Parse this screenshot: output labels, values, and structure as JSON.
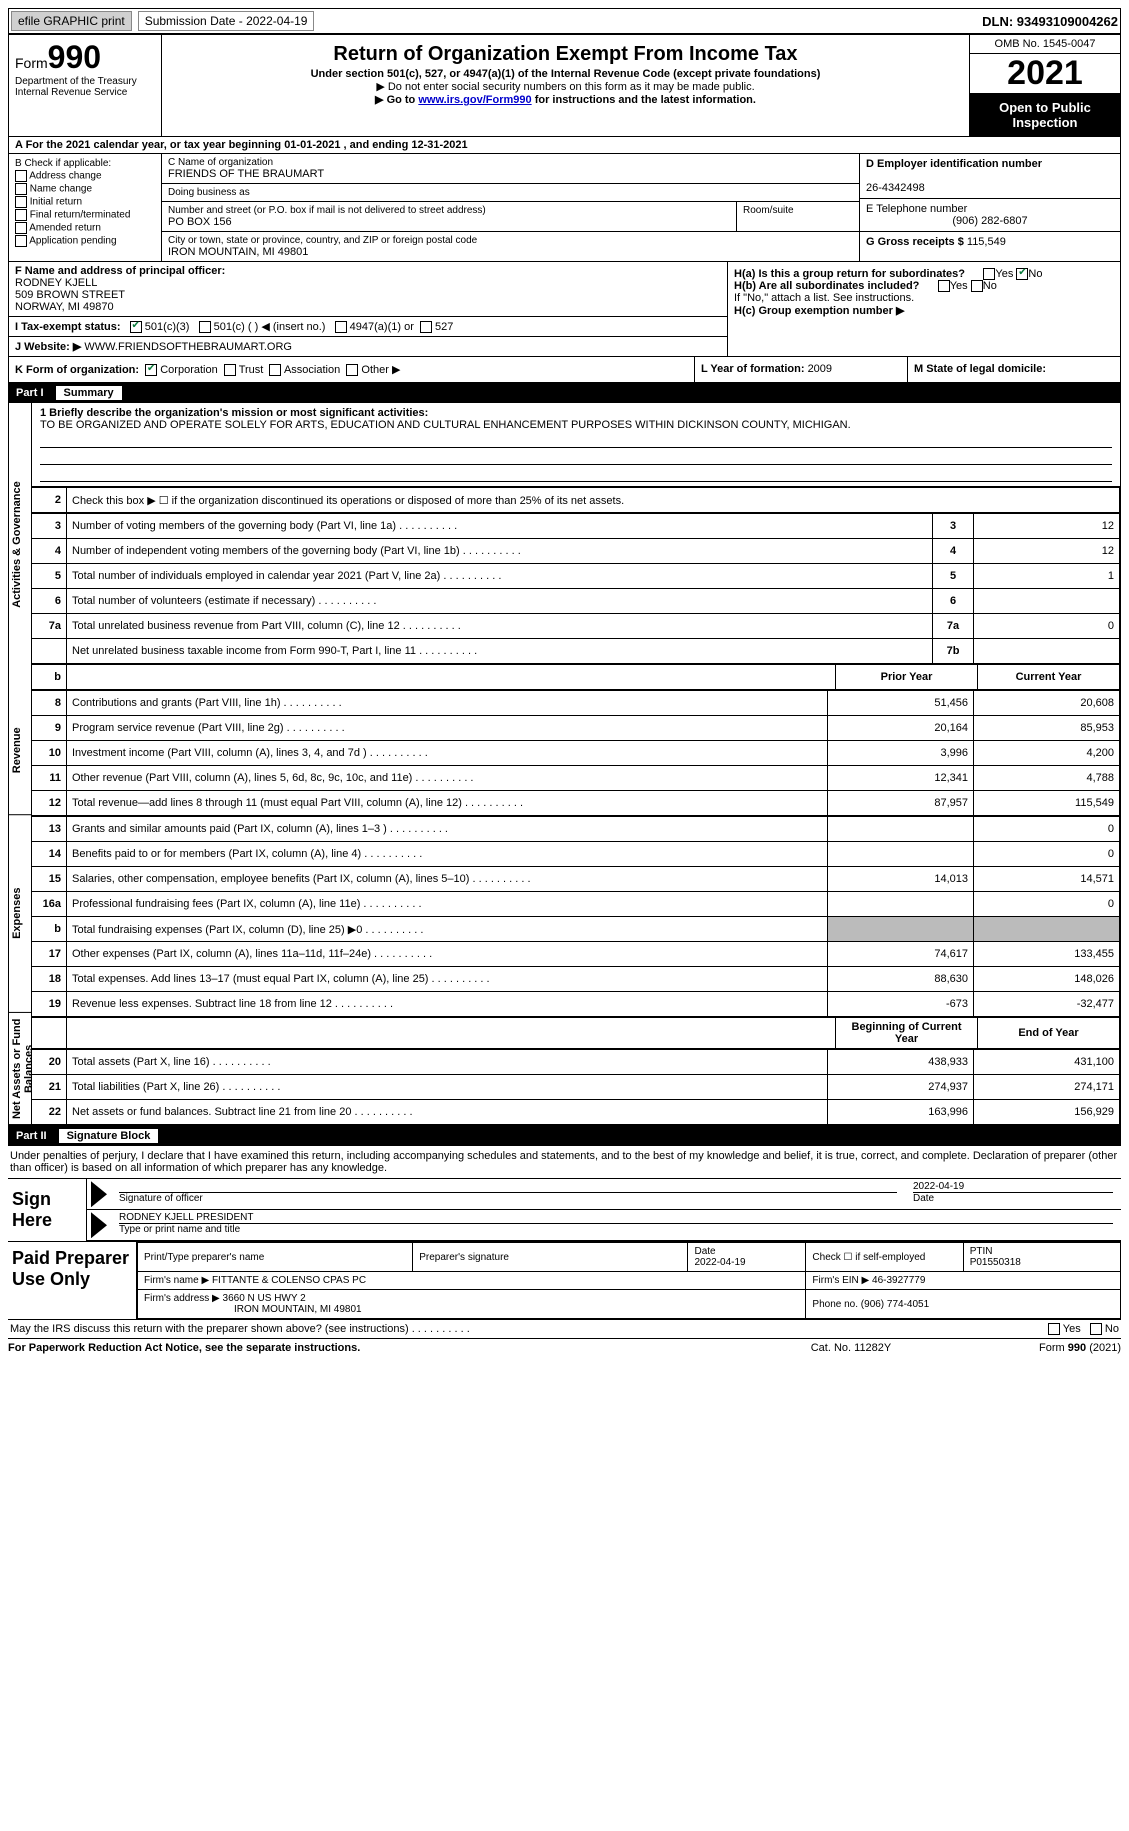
{
  "topbar": {
    "efile_button": "efile GRAPHIC print",
    "submission_label": "Submission Date - 2022-04-19",
    "dln": "DLN: 93493109004262"
  },
  "header": {
    "form_word": "Form",
    "form_number": "990",
    "dept": "Department of the Treasury Internal Revenue Service",
    "title": "Return of Organization Exempt From Income Tax",
    "subtitle": "Under section 501(c), 527, or 4947(a)(1) of the Internal Revenue Code (except private foundations)",
    "line1": "▶ Do not enter social security numbers on this form as it may be made public.",
    "line2_pre": "▶ Go to ",
    "line2_link": "www.irs.gov/Form990",
    "line2_post": " for instructions and the latest information.",
    "omb": "OMB No. 1545-0047",
    "year": "2021",
    "open": "Open to Public Inspection"
  },
  "row_a": "A For the 2021 calendar year, or tax year beginning 01-01-2021    , and ending 12-31-2021",
  "col_b": {
    "label": "B Check if applicable:",
    "addr": "Address change",
    "name": "Name change",
    "initial": "Initial return",
    "final": "Final return/terminated",
    "amended": "Amended return",
    "app": "Application pending"
  },
  "col_c": {
    "name_label": "C Name of organization",
    "name_value": "FRIENDS OF THE BRAUMART",
    "dba_label": "Doing business as",
    "dba_value": "",
    "street_label": "Number and street (or P.O. box if mail is not delivered to street address)",
    "street_value": "PO BOX 156",
    "room_label": "Room/suite",
    "city_label": "City or town, state or province, country, and ZIP or foreign postal code",
    "city_value": "IRON MOUNTAIN, MI  49801"
  },
  "col_d": {
    "ein_label": "D Employer identification number",
    "ein_value": "26-4342498",
    "phone_label": "E Telephone number",
    "phone_value": "(906) 282-6807",
    "gross_label": "G Gross receipts $ ",
    "gross_value": "115,549"
  },
  "fij": {
    "f_label": "F Name and address of principal officer:",
    "f_name": "RODNEY KJELL",
    "f_street": "509 BROWN STREET",
    "f_city": "NORWAY, MI  49870",
    "i_label": "I Tax-exempt status:",
    "i_501c3": "501(c)(3)",
    "i_501c": "501(c) (  ) ◀ (insert no.)",
    "i_4947": "4947(a)(1) or",
    "i_527": "527",
    "j_label": "J Website: ▶",
    "j_value": " WWW.FRIENDSOFTHEBRAUMART.ORG"
  },
  "h": {
    "ha_label": "H(a)  Is this a group return for subordinates?",
    "hb_label": "H(b)  Are all subordinates included?",
    "hb_note": "If \"No,\" attach a list. See instructions.",
    "hc_label": "H(c)  Group exemption number ▶"
  },
  "k": {
    "label": "K Form of organization:",
    "corp": "Corporation",
    "trust": "Trust",
    "assoc": "Association",
    "other": "Other ▶"
  },
  "l": {
    "label": "L Year of formation: ",
    "value": "2009"
  },
  "m": {
    "label": "M State of legal domicile:",
    "value": ""
  },
  "part1": {
    "num": "Part I",
    "title": "Summary"
  },
  "summary": {
    "vtab1": "Activities & Governance",
    "vtab2": "Revenue",
    "vtab3": "Expenses",
    "vtab4": "Net Assets or Fund Balances",
    "q1_label": "1  Briefly describe the organization's mission or most significant activities:",
    "q1_value": "TO BE ORGANIZED AND OPERATE SOLELY FOR ARTS, EDUCATION AND CULTURAL ENHANCEMENT PURPOSES WITHIN DICKINSON COUNTY, MICHIGAN.",
    "q2": "Check this box ▶ ☐ if the organization discontinued its operations or disposed of more than 25% of its net assets.",
    "lines_top": [
      {
        "n": "3",
        "desc": "Number of voting members of the governing body (Part VI, line 1a)",
        "box": "3",
        "val": "12"
      },
      {
        "n": "4",
        "desc": "Number of independent voting members of the governing body (Part VI, line 1b)",
        "box": "4",
        "val": "12"
      },
      {
        "n": "5",
        "desc": "Total number of individuals employed in calendar year 2021 (Part V, line 2a)",
        "box": "5",
        "val": "1"
      },
      {
        "n": "6",
        "desc": "Total number of volunteers (estimate if necessary)",
        "box": "6",
        "val": ""
      },
      {
        "n": "7a",
        "desc": "Total unrelated business revenue from Part VIII, column (C), line 12",
        "box": "7a",
        "val": "0"
      },
      {
        "n": "",
        "desc": "Net unrelated business taxable income from Form 990-T, Part I, line 11",
        "box": "7b",
        "val": ""
      }
    ],
    "col_prior": "Prior Year",
    "col_current": "Current Year",
    "rev": [
      {
        "n": "8",
        "desc": "Contributions and grants (Part VIII, line 1h)",
        "p": "51,456",
        "c": "20,608"
      },
      {
        "n": "9",
        "desc": "Program service revenue (Part VIII, line 2g)",
        "p": "20,164",
        "c": "85,953"
      },
      {
        "n": "10",
        "desc": "Investment income (Part VIII, column (A), lines 3, 4, and 7d )",
        "p": "3,996",
        "c": "4,200"
      },
      {
        "n": "11",
        "desc": "Other revenue (Part VIII, column (A), lines 5, 6d, 8c, 9c, 10c, and 11e)",
        "p": "12,341",
        "c": "4,788"
      },
      {
        "n": "12",
        "desc": "Total revenue—add lines 8 through 11 (must equal Part VIII, column (A), line 12)",
        "p": "87,957",
        "c": "115,549"
      }
    ],
    "exp": [
      {
        "n": "13",
        "desc": "Grants and similar amounts paid (Part IX, column (A), lines 1–3 )",
        "p": "",
        "c": "0"
      },
      {
        "n": "14",
        "desc": "Benefits paid to or for members (Part IX, column (A), line 4)",
        "p": "",
        "c": "0"
      },
      {
        "n": "15",
        "desc": "Salaries, other compensation, employee benefits (Part IX, column (A), lines 5–10)",
        "p": "14,013",
        "c": "14,571"
      },
      {
        "n": "16a",
        "desc": "Professional fundraising fees (Part IX, column (A), line 11e)",
        "p": "",
        "c": "0"
      },
      {
        "n": "b",
        "desc": "Total fundraising expenses (Part IX, column (D), line 25) ▶0",
        "p": "GRAY",
        "c": "GRAY"
      },
      {
        "n": "17",
        "desc": "Other expenses (Part IX, column (A), lines 11a–11d, 11f–24e)",
        "p": "74,617",
        "c": "133,455"
      },
      {
        "n": "18",
        "desc": "Total expenses. Add lines 13–17 (must equal Part IX, column (A), line 25)",
        "p": "88,630",
        "c": "148,026"
      },
      {
        "n": "19",
        "desc": "Revenue less expenses. Subtract line 18 from line 12",
        "p": "-673",
        "c": "-32,477"
      }
    ],
    "col_begin": "Beginning of Current Year",
    "col_end": "End of Year",
    "net": [
      {
        "n": "20",
        "desc": "Total assets (Part X, line 16)",
        "p": "438,933",
        "c": "431,100"
      },
      {
        "n": "21",
        "desc": "Total liabilities (Part X, line 26)",
        "p": "274,937",
        "c": "274,171"
      },
      {
        "n": "22",
        "desc": "Net assets or fund balances. Subtract line 21 from line 20",
        "p": "163,996",
        "c": "156,929"
      }
    ]
  },
  "part2": {
    "num": "Part II",
    "title": "Signature Block"
  },
  "penalties": "Under penalties of perjury, I declare that I have examined this return, including accompanying schedules and statements, and to the best of my knowledge and belief, it is true, correct, and complete. Declaration of preparer (other than officer) is based on all information of which preparer has any knowledge.",
  "sign": {
    "label": "Sign Here",
    "sig_label": "Signature of officer",
    "date": "2022-04-19",
    "date_label": "Date",
    "name": "RODNEY KJELL  PRESIDENT",
    "name_label": "Type or print name and title"
  },
  "prep": {
    "label": "Paid Preparer Use Only",
    "print_label": "Print/Type preparer's name",
    "sig_label": "Preparer's signature",
    "date_label": "Date",
    "date": "2022-04-19",
    "check_label": "Check ☐ if self-employed",
    "ptin_label": "PTIN",
    "ptin": "P01550318",
    "firm_name_label": "Firm's name    ▶",
    "firm_name": "FITTANTE & COLENSO CPAS PC",
    "firm_ein_label": "Firm's EIN ▶",
    "firm_ein": "46-3927779",
    "firm_addr_label": "Firm's address ▶",
    "firm_addr1": "3660 N US HWY 2",
    "firm_addr2": "IRON MOUNTAIN, MI  49801",
    "phone_label": "Phone no. ",
    "phone": "(906) 774-4051"
  },
  "may_discuss": "May the IRS discuss this return with the preparer shown above? (see instructions)",
  "footer": {
    "left": "For Paperwork Reduction Act Notice, see the separate instructions.",
    "mid": "Cat. No. 11282Y",
    "right": "Form 990 (2021)"
  }
}
